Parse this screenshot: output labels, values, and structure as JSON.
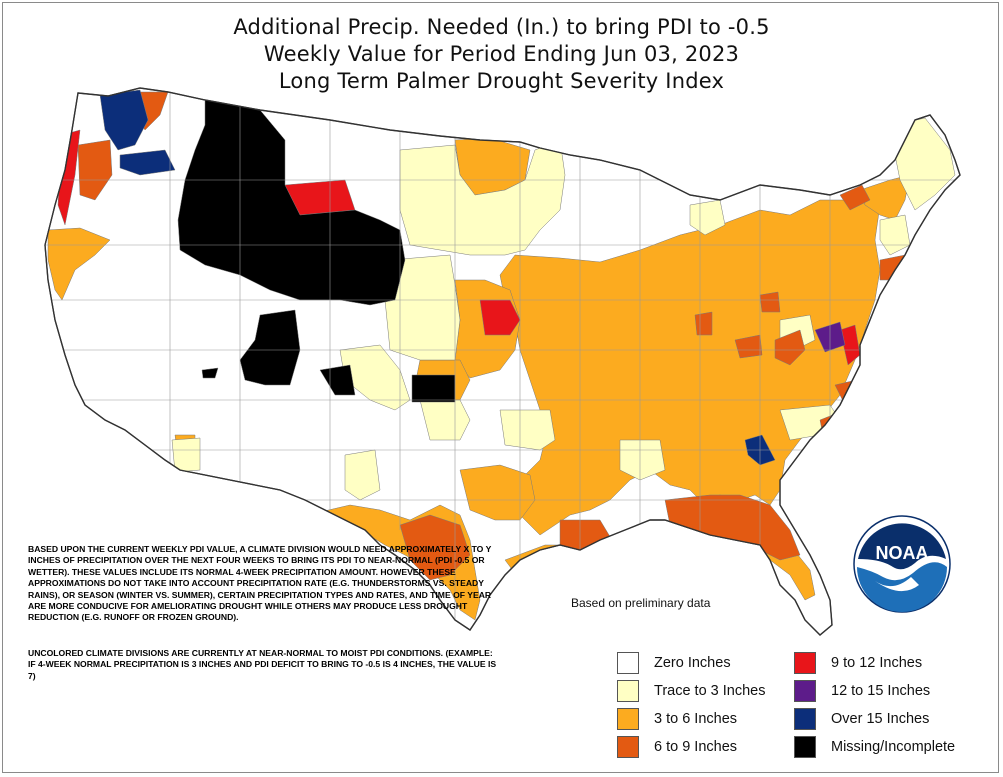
{
  "title": {
    "line1": "Additional Precip. Needed (In.) to bring PDI to -0.5",
    "line2": "Weekly Value for Period Ending Jun 03, 2023",
    "line3": "Long Term Palmer Drought Severity Index"
  },
  "notes": {
    "paragraph1": "BASED UPON THE CURRENT WEEKLY PDI VALUE, A CLIMATE DIVISION WOULD NEED APPROXIMATELY X TO Y INCHES OF PRECIPITATION OVER THE NEXT FOUR WEEKS TO BRING ITS PDI TO NEAR-NORMAL (PDI -0.5 OR WETTER). THESE VALUES INCLUDE ITS NORMAL 4-WEEK PRECIPITATION AMOUNT. HOWEVER THESE APPROXIMATIONS DO NOT TAKE INTO ACCOUNT PRECIPITATION RATE (E.G. THUNDERSTORMS VS. STEADY RAINS), OR SEASON (WINTER VS. SUMMER), CERTAIN PRECIPITATION TYPES AND RATES, AND TIME OF YEAR ARE MORE CONDUCIVE FOR AMELIORATING DROUGHT WHILE OTHERS MAY PRODUCE LESS DROUGHT REDUCTION (E.G. RUNOFF OR FROZEN GROUND).",
    "paragraph2": "UNCOLORED CLIMATE DIVISIONS ARE CURRENTLY AT NEAR-NORMAL TO MOIST PDI CONDITIONS. (EXAMPLE: IF 4-WEEK NORMAL PRECIPITATION IS 3 INCHES AND PDI DEFICIT TO BRING TO -0.5 IS 4 INCHES, THE VALUE IS 7)"
  },
  "prelim_note": "Based on preliminary data",
  "logo_text": "NOAA",
  "colors": {
    "zero": "#ffffff",
    "trace": "#ffffc4",
    "c3to6": "#fcab1f",
    "c6to9": "#e35a12",
    "c9to12": "#e8151a",
    "c12to15": "#5d1c8a",
    "over15": "#0c2e7a",
    "missing": "#000000",
    "noaa_blue": "#1e6fb8",
    "noaa_dark": "#0a2f6b"
  },
  "legend": [
    {
      "label": "Zero Inches",
      "color": "#ffffff"
    },
    {
      "label": "Trace to 3 Inches",
      "color": "#ffffc4"
    },
    {
      "label": "3 to 6 Inches",
      "color": "#fcab1f"
    },
    {
      "label": "6 to 9 Inches",
      "color": "#e35a12"
    },
    {
      "label": "9 to 12 Inches",
      "color": "#e8151a"
    },
    {
      "label": "12 to 15 Inches",
      "color": "#5d1c8a"
    },
    {
      "label": "Over 15 Inches",
      "color": "#0c2e7a"
    },
    {
      "label": "Missing/Incomplete",
      "color": "#000000"
    }
  ]
}
